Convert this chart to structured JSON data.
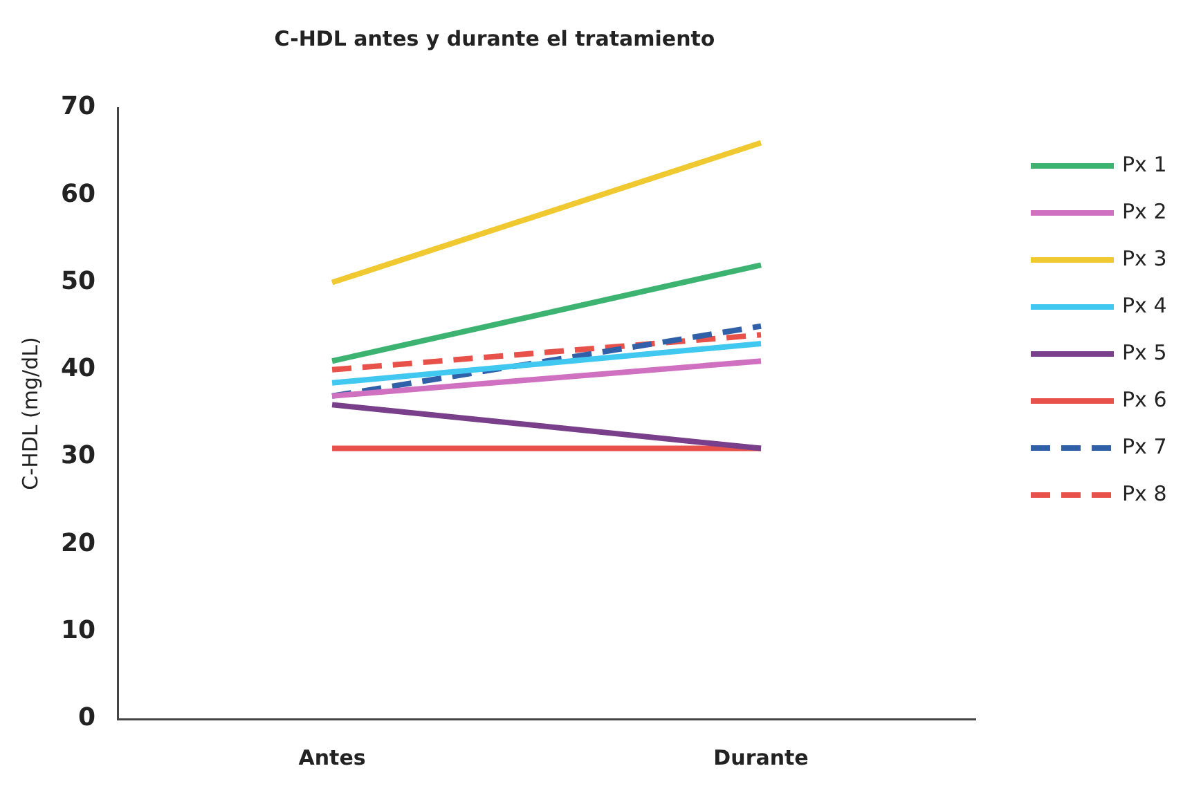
{
  "chart_data": {
    "type": "line",
    "title": "C-HDL antes y durante el tratamiento",
    "ylabel": "C-HDL (mg/dL)",
    "categories": [
      "Antes",
      "Durante"
    ],
    "series": [
      {
        "name": "Px 1",
        "color": "#3cb371",
        "values": [
          41,
          52
        ]
      },
      {
        "name": "Px 2",
        "color": "#d070c0",
        "values": [
          37,
          41
        ]
      },
      {
        "name": "Px 3",
        "color": "#f0c830",
        "values": [
          50,
          66
        ]
      },
      {
        "name": "Px 4",
        "color": "#40c8f0",
        "values": [
          38.5,
          43
        ]
      },
      {
        "name": "Px 5",
        "color": "#7a3f8a",
        "values": [
          36,
          31
        ]
      },
      {
        "name": "Px 6",
        "color": "#e8504a",
        "values": [
          31,
          31
        ]
      },
      {
        "name": "Px 7",
        "color": "#3060a8",
        "values": [
          37,
          45
        ],
        "line_style": "dashed"
      },
      {
        "name": "Px 8",
        "color": "#e8504a",
        "values": [
          40,
          44
        ],
        "line_style": "dashed"
      }
    ],
    "ylim": [
      0,
      70
    ],
    "yticks": [
      0,
      10,
      20,
      30,
      40,
      50,
      60,
      70
    ],
    "grid": false,
    "legend": "right",
    "marker": "none"
  }
}
